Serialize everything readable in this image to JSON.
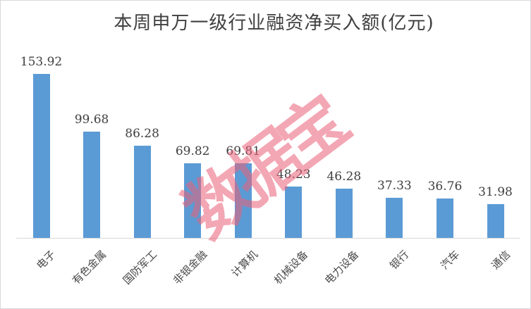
{
  "chart_data": {
    "type": "bar",
    "title": "本周申万一级行业融资净买入额(亿元)",
    "categories": [
      "电子",
      "有色金属",
      "国防军工",
      "非银金融",
      "计算机",
      "机械设备",
      "电力设备",
      "银行",
      "汽车",
      "通信"
    ],
    "values": [
      153.92,
      99.68,
      86.28,
      69.82,
      69.81,
      48.23,
      46.28,
      37.33,
      36.76,
      31.98
    ],
    "value_labels": [
      "153.92",
      "99.68",
      "86.28",
      "69.82",
      "69.81",
      "48.23",
      "46.28",
      "37.33",
      "36.76",
      "31.98"
    ],
    "xlabel": "",
    "ylabel": "",
    "ylim": [
      0,
      165
    ],
    "grid": false,
    "legend": false,
    "y_axis_visible": false,
    "data_labels": true,
    "category_label_rotation_deg": 45,
    "bar_color": "#5B9BD5",
    "label_color": "#404040",
    "axis_line_color": "#d9d9d9"
  },
  "watermark": {
    "text": "数据宝",
    "color": "#EB6078"
  }
}
